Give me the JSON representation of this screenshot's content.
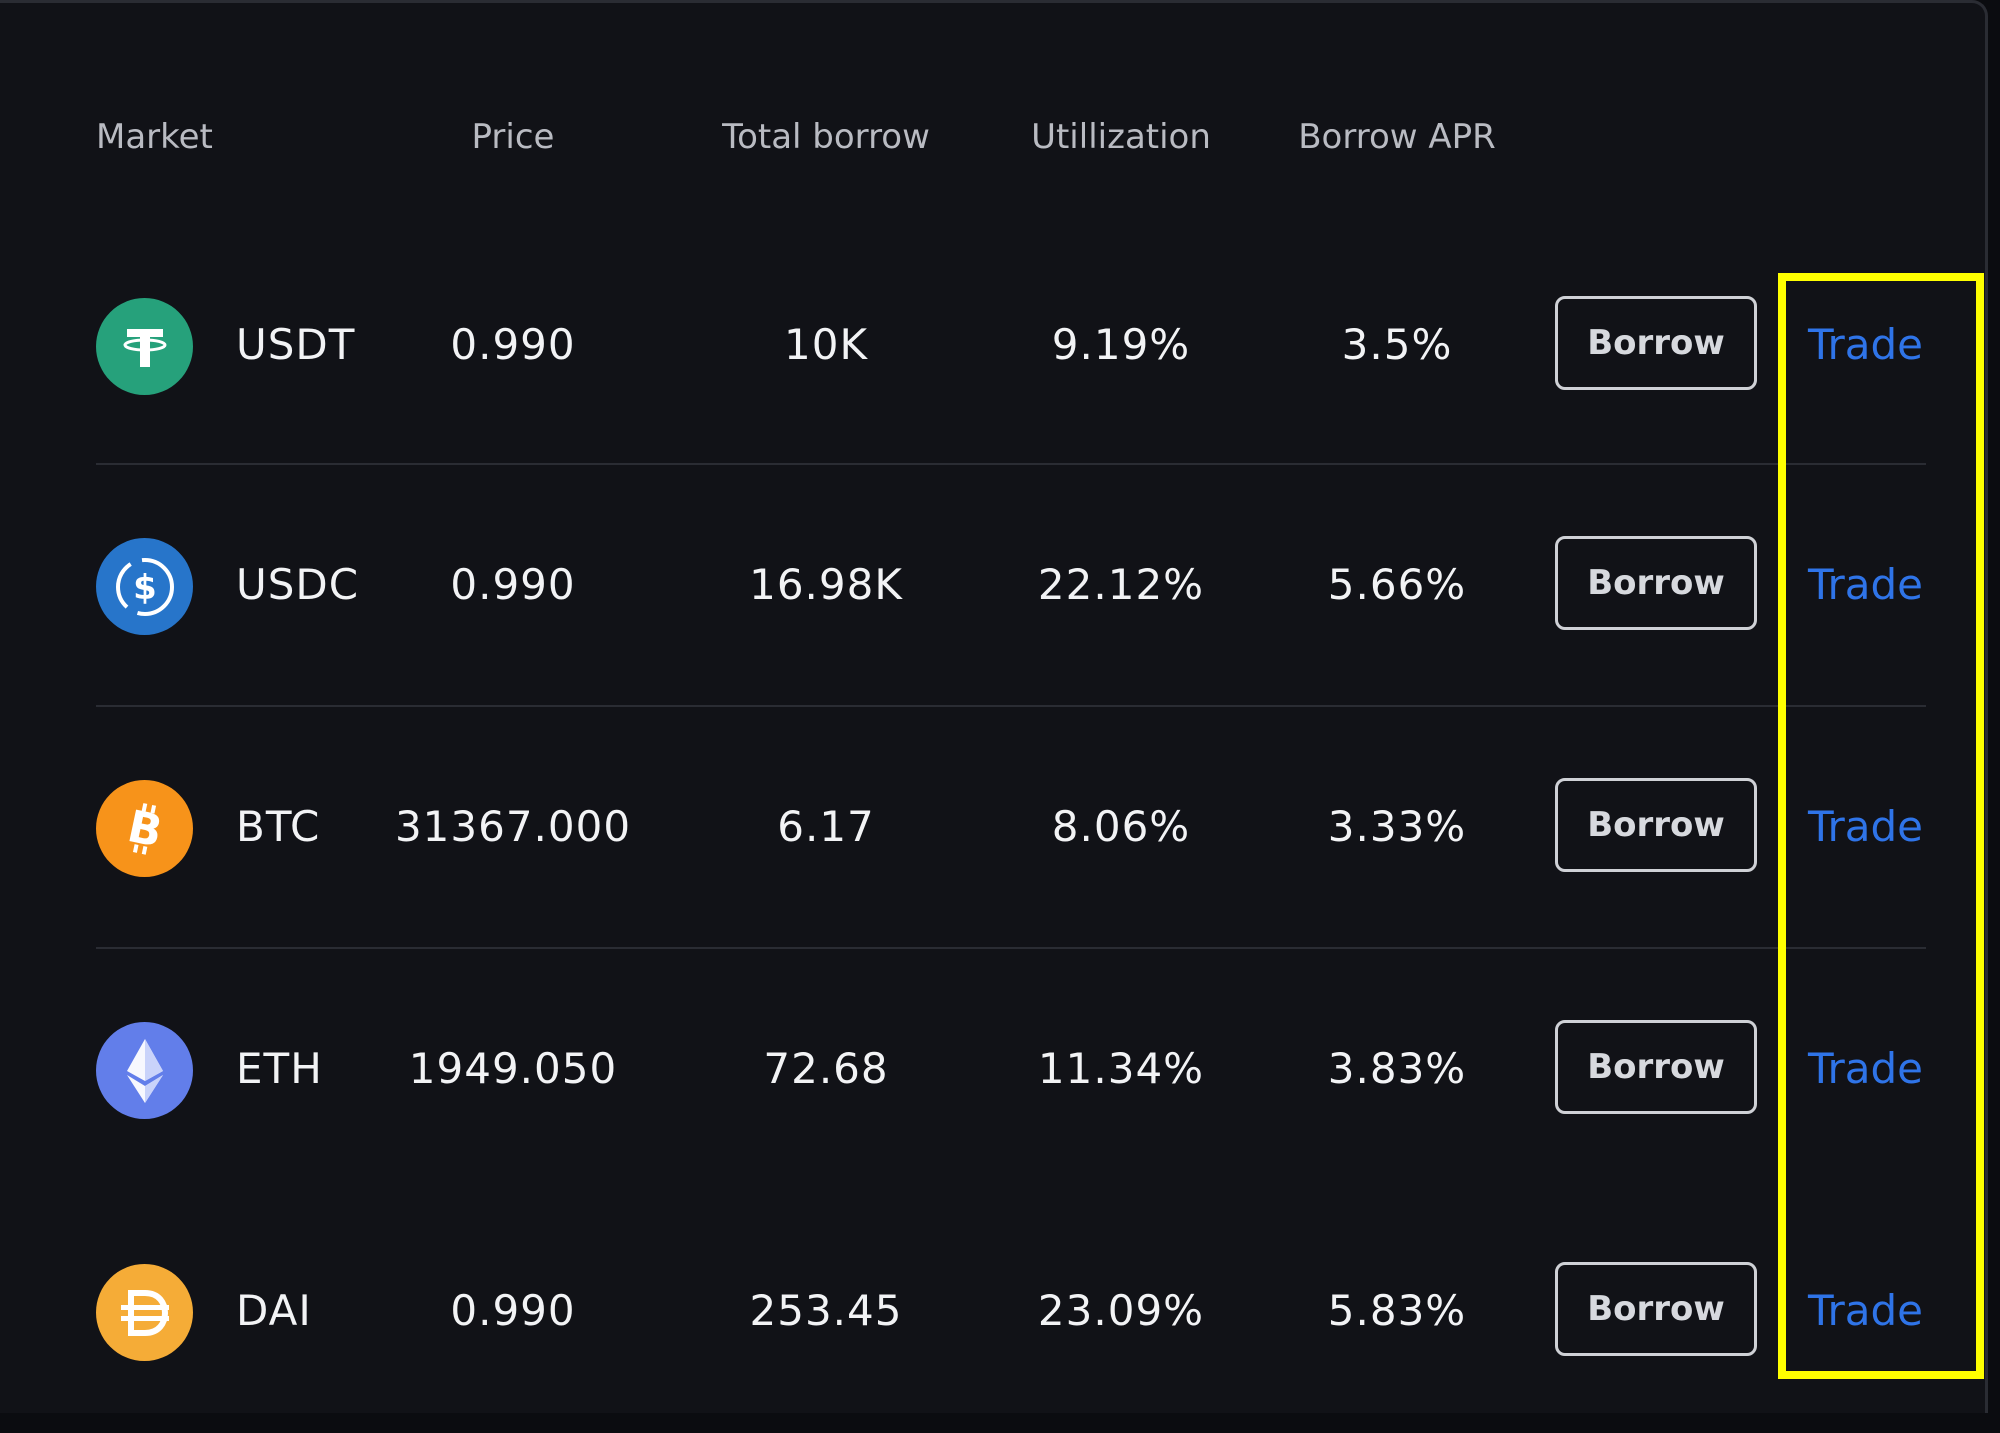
{
  "table": {
    "headers": {
      "market": "Market",
      "price": "Price",
      "total_borrow": "Total borrow",
      "utilization": "Utillization",
      "borrow_apr": "Borrow APR"
    },
    "rows": [
      {
        "symbol": "USDT",
        "icon": "tether-icon",
        "icon_color": "#26a17b",
        "price": "0.990",
        "total_borrow": "10K",
        "utilization": "9.19%",
        "borrow_apr": "3.5%",
        "borrow_label": "Borrow",
        "trade_label": "Trade"
      },
      {
        "symbol": "USDC",
        "icon": "usdc-icon",
        "icon_color": "#2775ca",
        "price": "0.990",
        "total_borrow": "16.98K",
        "utilization": "22.12%",
        "borrow_apr": "5.66%",
        "borrow_label": "Borrow",
        "trade_label": "Trade"
      },
      {
        "symbol": "BTC",
        "icon": "bitcoin-icon",
        "icon_color": "#f7931a",
        "price": "31367.000",
        "total_borrow": "6.17",
        "utilization": "8.06%",
        "borrow_apr": "3.33%",
        "borrow_label": "Borrow",
        "trade_label": "Trade"
      },
      {
        "symbol": "ETH",
        "icon": "ethereum-icon",
        "icon_color": "#627eea",
        "price": "1949.050",
        "total_borrow": "72.68",
        "utilization": "11.34%",
        "borrow_apr": "3.83%",
        "borrow_label": "Borrow",
        "trade_label": "Trade"
      },
      {
        "symbol": "DAI",
        "icon": "dai-icon",
        "icon_color": "#f5ac37",
        "price": "0.990",
        "total_borrow": "253.45",
        "utilization": "23.09%",
        "borrow_apr": "5.83%",
        "borrow_label": "Borrow",
        "trade_label": "Trade"
      }
    ]
  },
  "colors": {
    "background": "#111217",
    "text": "#f2f3f5",
    "header_text": "#b9bbc2",
    "trade_link": "#2f74e8",
    "highlight": "#ffff00"
  }
}
